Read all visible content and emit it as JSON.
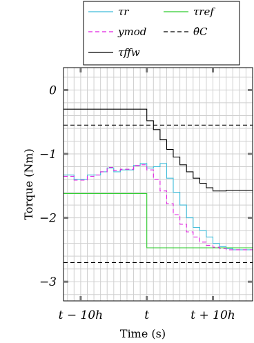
{
  "chart_data": {
    "type": "line",
    "xlabel": "Time (s)",
    "ylabel": "Torque (Nm)",
    "xlim": [
      -12.6,
      16.0
    ],
    "ylim": [
      -3.3,
      0.35
    ],
    "grid": true,
    "legend_position": "top-center",
    "xtick_labels": [
      {
        "x": -10,
        "label": "t − 10h"
      },
      {
        "x": 0,
        "label": "t"
      },
      {
        "x": 10,
        "label": "t + 10h"
      }
    ],
    "ytick_labels": [
      {
        "y": 0,
        "label": "0"
      },
      {
        "y": -1,
        "label": "−1"
      },
      {
        "y": -2,
        "label": "−2"
      },
      {
        "y": -3,
        "label": "−3"
      }
    ],
    "series": [
      {
        "name": "τ_r",
        "color": "#3fbcd9",
        "dash": "solid",
        "style": "step",
        "x": [
          -12.6,
          -11,
          -10,
          -9,
          -8,
          -7,
          -6,
          -5,
          -4,
          -3,
          -2,
          -1,
          0,
          1,
          2,
          3,
          4,
          5,
          6,
          7,
          8,
          9,
          10,
          11,
          12,
          13,
          14,
          15,
          16
        ],
        "y": [
          -1.33,
          -1.4,
          -1.4,
          -1.33,
          -1.33,
          -1.28,
          -1.22,
          -1.28,
          -1.25,
          -1.25,
          -1.18,
          -1.15,
          -1.22,
          -1.2,
          -1.15,
          -1.38,
          -1.6,
          -1.8,
          -2.0,
          -2.15,
          -2.2,
          -2.3,
          -2.4,
          -2.45,
          -2.48,
          -2.5,
          -2.5,
          -2.5,
          -2.5
        ]
      },
      {
        "name": "τ_ref",
        "color": "#2ecc2e",
        "dash": "solid",
        "style": "step",
        "x": [
          -12.6,
          0,
          0,
          16
        ],
        "y": [
          -1.62,
          -1.62,
          -2.47,
          -2.47
        ]
      },
      {
        "name": "y_mod",
        "color": "#e020e0",
        "dash": "dashed",
        "style": "step",
        "x": [
          -12.6,
          -11,
          -10,
          -9,
          -8,
          -7,
          -6,
          -5,
          -4,
          -3,
          -2,
          -1,
          0,
          1,
          2,
          3,
          4,
          5,
          6,
          7,
          8,
          9,
          10,
          11,
          12,
          13,
          14,
          15,
          16
        ],
        "y": [
          -1.35,
          -1.41,
          -1.41,
          -1.35,
          -1.33,
          -1.28,
          -1.21,
          -1.26,
          -1.24,
          -1.24,
          -1.18,
          -1.17,
          -1.25,
          -1.4,
          -1.58,
          -1.78,
          -1.95,
          -2.1,
          -2.22,
          -2.3,
          -2.38,
          -2.43,
          -2.46,
          -2.48,
          -2.5,
          -2.5,
          -2.5,
          -2.5,
          -2.5
        ]
      },
      {
        "name": "θ̂_C (upper)",
        "color": "#000000",
        "dash": "dashed",
        "style": "line",
        "x": [
          -12.6,
          16
        ],
        "y": [
          -0.55,
          -0.55
        ]
      },
      {
        "name": "θ̂_C (lower)",
        "color": "#000000",
        "dash": "dashed",
        "style": "line",
        "x": [
          -12.6,
          16
        ],
        "y": [
          -2.7,
          -2.7
        ]
      },
      {
        "name": "τ_ffw",
        "color": "#000000",
        "dash": "solid",
        "style": "step",
        "x": [
          -12.6,
          0,
          1,
          2,
          3,
          4,
          5,
          6,
          7,
          8,
          9,
          10,
          11,
          12,
          16
        ],
        "y": [
          -0.3,
          -0.48,
          -0.62,
          -0.78,
          -0.93,
          -1.05,
          -1.17,
          -1.28,
          -1.38,
          -1.46,
          -1.53,
          -1.58,
          -1.58,
          -1.57,
          -1.57
        ]
      }
    ]
  },
  "legend": {
    "items": [
      {
        "key": "tau_r",
        "label": "τr",
        "color": "#3fbcd9",
        "dash": "solid"
      },
      {
        "key": "tau_ref",
        "label": "τref",
        "color": "#2ecc2e",
        "dash": "solid"
      },
      {
        "key": "y_mod",
        "label": "ymod",
        "color": "#e020e0",
        "dash": "dashed"
      },
      {
        "key": "theta_c",
        "label": "θ̂C",
        "color": "#000000",
        "dash": "dashed"
      },
      {
        "key": "tau_ffw",
        "label": "τffw",
        "color": "#000000",
        "dash": "solid"
      }
    ]
  }
}
